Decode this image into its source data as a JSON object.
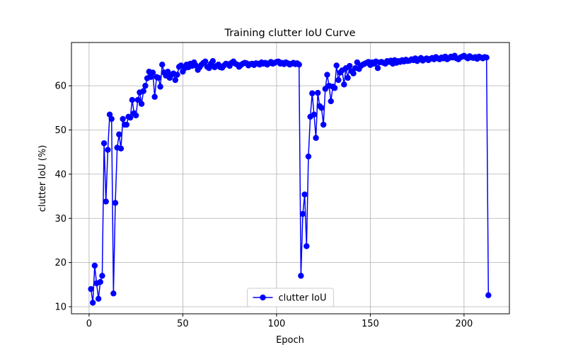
{
  "chart_data": {
    "type": "line",
    "title": "Training clutter IoU Curve",
    "xlabel": "Epoch",
    "ylabel": "clutter IoU (%)",
    "xlim": [
      -9.4,
      224.2
    ],
    "ylim": [
      8.4,
      69.8
    ],
    "xticks": [
      0,
      50,
      100,
      150,
      200
    ],
    "yticks": [
      10,
      20,
      30,
      40,
      50,
      60
    ],
    "grid": true,
    "legend": "lower center",
    "marker": "o",
    "x": [
      1,
      2,
      3,
      4,
      5,
      6,
      7,
      8,
      9,
      10,
      11,
      12,
      13,
      14,
      15,
      16,
      17,
      18,
      19,
      20,
      21,
      22,
      23,
      24,
      25,
      26,
      27,
      28,
      29,
      30,
      31,
      32,
      33,
      34,
      35,
      36,
      37,
      38,
      39,
      40,
      41,
      42,
      43,
      44,
      45,
      46,
      47,
      48,
      49,
      50,
      51,
      52,
      53,
      54,
      55,
      56,
      57,
      58,
      59,
      60,
      61,
      62,
      63,
      64,
      65,
      66,
      67,
      68,
      69,
      70,
      71,
      72,
      73,
      74,
      75,
      76,
      77,
      78,
      79,
      80,
      81,
      82,
      83,
      84,
      85,
      86,
      87,
      88,
      89,
      90,
      91,
      92,
      93,
      94,
      95,
      96,
      97,
      98,
      99,
      100,
      101,
      102,
      103,
      104,
      105,
      106,
      107,
      108,
      109,
      110,
      111,
      112,
      113,
      114,
      115,
      116,
      117,
      118,
      119,
      120,
      121,
      122,
      123,
      124,
      125,
      126,
      127,
      128,
      129,
      130,
      131,
      132,
      133,
      134,
      135,
      136,
      137,
      138,
      139,
      140,
      141,
      142,
      143,
      144,
      145,
      146,
      147,
      148,
      149,
      150,
      151,
      152,
      153,
      154,
      155,
      156,
      157,
      158,
      159,
      160,
      161,
      162,
      163,
      164,
      165,
      166,
      167,
      168,
      169,
      170,
      171,
      172,
      173,
      174,
      175,
      176,
      177,
      178,
      179,
      180,
      181,
      182,
      183,
      184,
      185,
      186,
      187,
      188,
      189,
      190,
      191,
      192,
      193,
      194,
      195,
      196,
      197,
      198,
      199,
      200,
      201,
      202,
      203,
      204,
      205,
      206,
      207,
      208,
      209,
      210,
      211,
      212,
      213
    ],
    "series": [
      {
        "name": "clutter IoU",
        "color": "#0000ff",
        "values": [
          14.0,
          10.9,
          19.3,
          15.3,
          11.8,
          15.6,
          17.0,
          47.0,
          33.8,
          45.5,
          53.5,
          52.5,
          13.0,
          33.5,
          46.0,
          49.0,
          45.8,
          52.5,
          51.2,
          51.2,
          53.0,
          52.8,
          56.8,
          53.8,
          53.3,
          56.8,
          58.5,
          55.9,
          58.8,
          60.0,
          61.7,
          63.2,
          62.0,
          63.0,
          57.5,
          62.0,
          61.8,
          59.8,
          64.8,
          63.0,
          62.3,
          63.2,
          61.8,
          62.5,
          62.8,
          61.3,
          62.5,
          64.3,
          64.6,
          63.2,
          64.0,
          64.8,
          64.2,
          65.0,
          64.5,
          65.3,
          64.6,
          63.6,
          64.2,
          64.8,
          65.2,
          65.5,
          64.3,
          64.0,
          65.0,
          65.6,
          64.2,
          64.5,
          64.8,
          64.2,
          64.1,
          64.6,
          65.0,
          64.9,
          64.5,
          65.2,
          65.5,
          65.0,
          64.8,
          64.3,
          64.7,
          65.0,
          65.2,
          65.1,
          64.6,
          64.9,
          65.0,
          64.7,
          65.1,
          65.0,
          64.8,
          65.3,
          65.0,
          65.2,
          64.8,
          65.1,
          65.4,
          65.0,
          65.2,
          65.4,
          65.5,
          65.0,
          65.2,
          64.9,
          65.3,
          65.1,
          64.8,
          65.0,
          65.2,
          64.9,
          65.1,
          64.8,
          17.0,
          31.0,
          35.4,
          23.7,
          44.0,
          53.0,
          58.3,
          53.5,
          48.2,
          58.4,
          55.4,
          55.0,
          51.2,
          59.3,
          62.5,
          60.0,
          56.5,
          59.8,
          59.5,
          64.6,
          61.3,
          63.0,
          63.5,
          60.3,
          64.0,
          61.8,
          64.5,
          63.3,
          62.8,
          64.0,
          65.3,
          63.8,
          64.5,
          64.8,
          65.0,
          65.2,
          65.4,
          64.7,
          65.3,
          65.0,
          65.5,
          64.0,
          65.3,
          65.4,
          65.2,
          65.0,
          65.6,
          65.4,
          65.7,
          65.0,
          65.8,
          65.2,
          65.6,
          65.4,
          65.8,
          65.5,
          65.9,
          65.6,
          65.7,
          66.0,
          65.8,
          66.2,
          65.6,
          66.0,
          66.3,
          65.7,
          66.0,
          66.2,
          65.8,
          66.1,
          66.3,
          66.0,
          66.5,
          66.2,
          66.0,
          66.4,
          66.2,
          66.6,
          66.0,
          66.3,
          66.6,
          66.4,
          66.8,
          66.2,
          66.0,
          66.4,
          66.6,
          66.8,
          66.5,
          66.2,
          66.7,
          66.4,
          66.3,
          66.5,
          66.1,
          66.6,
          66.4,
          66.2,
          66.5,
          66.4,
          12.6
        ]
      }
    ]
  }
}
